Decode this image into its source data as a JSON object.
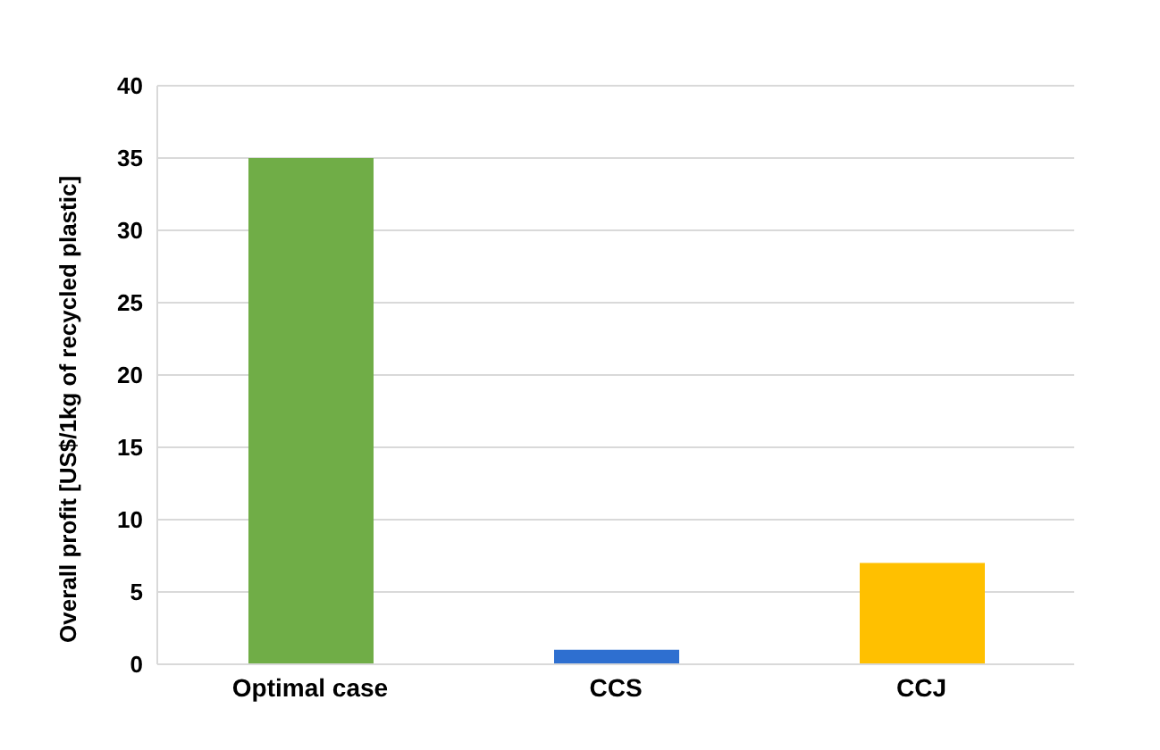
{
  "chart_data": {
    "type": "bar",
    "ylabel": "Overall profit [US$/1kg of recycled plastic]",
    "categories": [
      "Optimal case",
      "CCS",
      "CCJ"
    ],
    "values": [
      35,
      1,
      7
    ],
    "colors": [
      "#70ad47",
      "#2e6fd0",
      "#ffc000"
    ],
    "ylim": [
      0,
      40
    ],
    "yticks": [
      0,
      5,
      10,
      15,
      20,
      25,
      30,
      35,
      40
    ],
    "grid": "y"
  }
}
